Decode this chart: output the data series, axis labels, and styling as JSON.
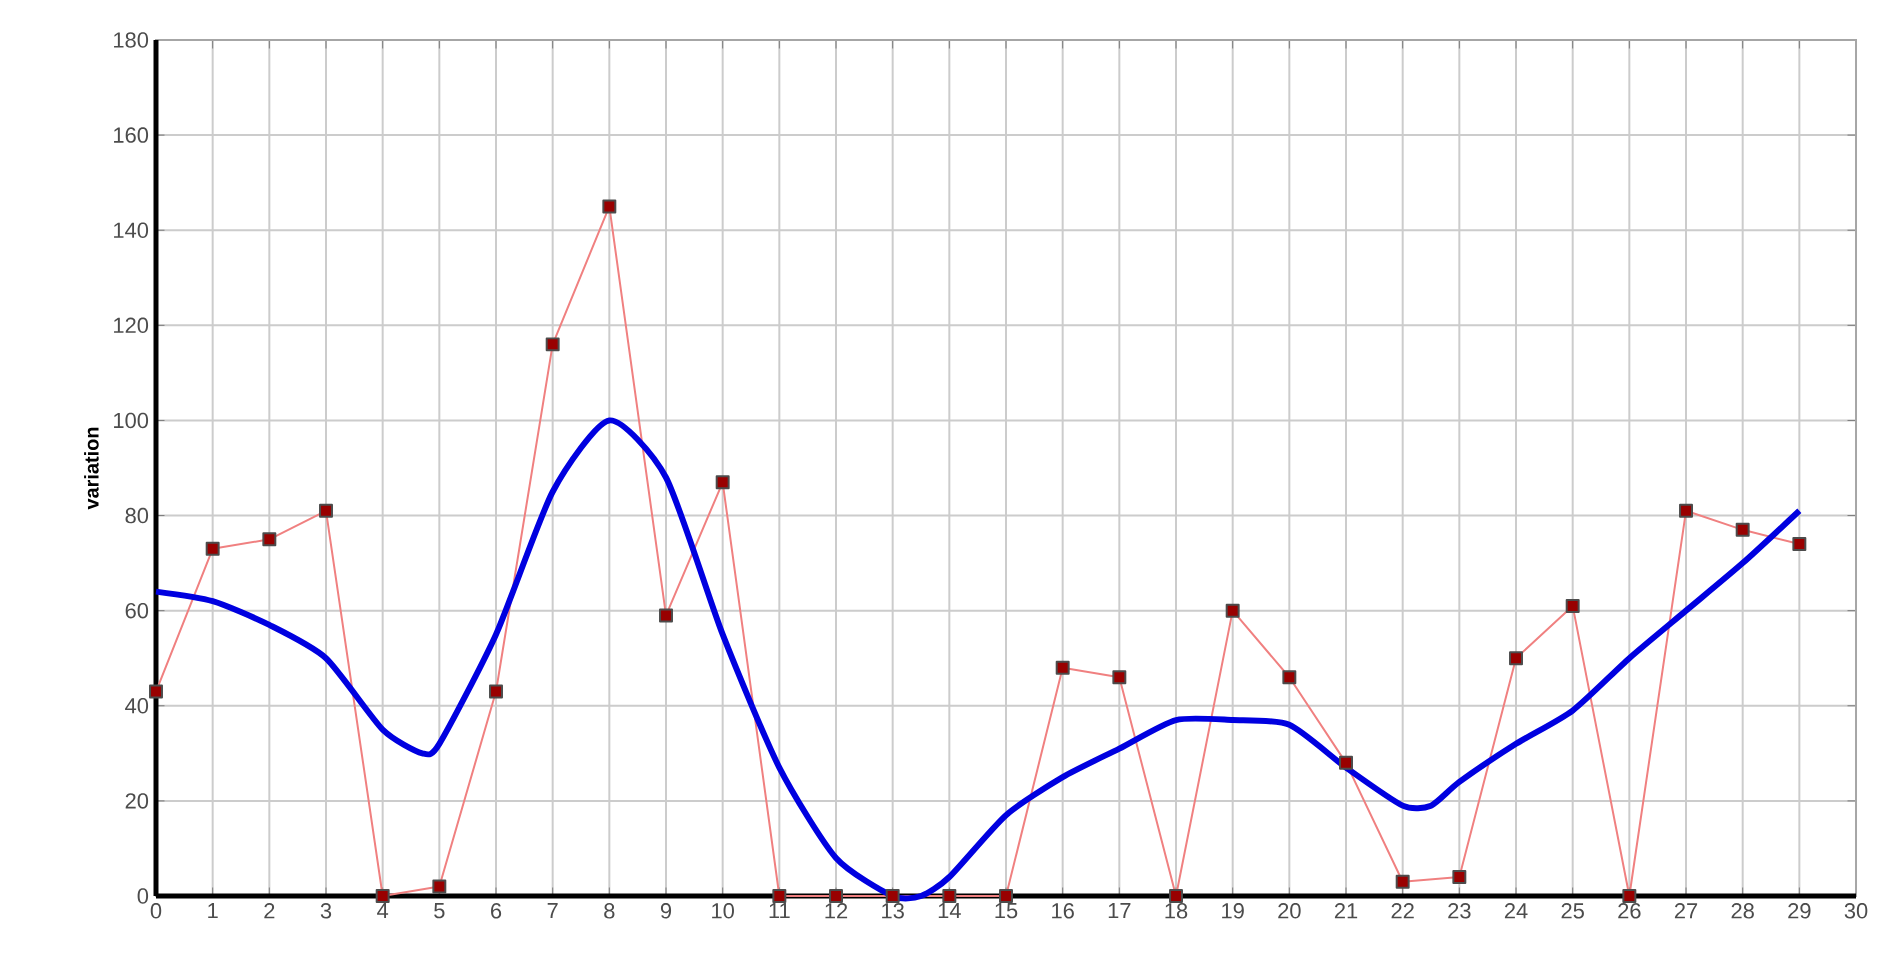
{
  "chart_data": {
    "type": "line",
    "ylabel": "variation",
    "x": [
      0,
      1,
      2,
      3,
      4,
      5,
      6,
      7,
      8,
      9,
      10,
      11,
      12,
      13,
      14,
      15,
      16,
      17,
      18,
      19,
      20,
      21,
      22,
      23,
      24,
      25,
      26,
      27,
      28,
      29
    ],
    "series": [
      {
        "color": "#f08080",
        "marker": "square",
        "values": [
          43,
          73,
          75,
          81,
          0,
          2,
          43,
          116,
          145,
          59,
          87,
          0,
          0,
          0,
          0,
          0,
          48,
          46,
          0,
          60,
          46,
          28,
          3,
          4,
          50,
          61,
          0,
          81,
          77,
          74
        ]
      },
      {
        "color": "#0000e0",
        "marker": "none",
        "x": [
          0,
          1,
          2,
          3,
          4,
          4.7,
          5,
          6,
          7,
          8,
          9,
          10,
          11,
          12,
          13,
          13.5,
          14,
          15,
          16,
          17,
          18,
          19,
          20,
          21,
          22,
          22.5,
          23,
          24,
          25,
          26,
          27,
          28,
          29
        ],
        "values": [
          64,
          62,
          57,
          50,
          35,
          30,
          32,
          55,
          85,
          100,
          88,
          55,
          27,
          8,
          0,
          0,
          4,
          17,
          25,
          31,
          37,
          37,
          36,
          27,
          19,
          19,
          24,
          32,
          39,
          50,
          60,
          70,
          81
        ]
      }
    ],
    "xlim": [
      0,
      30
    ],
    "ylim": [
      0,
      180
    ],
    "xticks": [
      0,
      1,
      2,
      3,
      4,
      5,
      6,
      7,
      8,
      9,
      10,
      11,
      12,
      13,
      14,
      15,
      16,
      17,
      18,
      19,
      20,
      21,
      22,
      23,
      24,
      25,
      26,
      27,
      28,
      29,
      30
    ],
    "yticks": [
      0,
      20,
      40,
      60,
      80,
      100,
      120,
      140,
      160,
      180
    ],
    "grid": true
  }
}
